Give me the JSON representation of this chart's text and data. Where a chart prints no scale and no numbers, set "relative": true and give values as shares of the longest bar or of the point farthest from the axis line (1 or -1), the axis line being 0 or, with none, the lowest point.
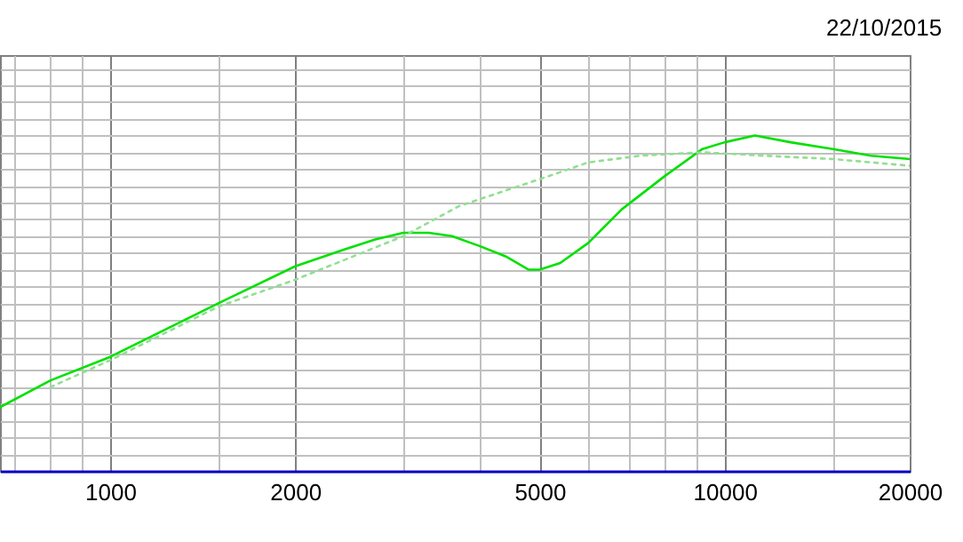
{
  "chart_data": {
    "type": "line",
    "relative": true,
    "log": "x",
    "grid": true,
    "annotations": [
      "22/10/2015"
    ],
    "xlim": [
      662,
      20000
    ],
    "xticks": [
      {
        "value": 700,
        "label": null
      },
      {
        "value": 800,
        "label": null
      },
      {
        "value": 900,
        "label": null
      },
      1000,
      {
        "value": 1500,
        "label": null
      },
      2000,
      {
        "value": 3000,
        "label": null
      },
      {
        "value": 4000,
        "label": null
      },
      5000,
      {
        "value": 6000,
        "label": null
      },
      {
        "value": 7000,
        "label": null
      },
      {
        "value": 8000,
        "label": null
      },
      {
        "value": 9000,
        "label": null
      },
      10000,
      {
        "value": 15000,
        "label": null
      },
      20000
    ],
    "series": [
      {
        "color": "#00e000",
        "line_style": "solid",
        "x": [
          662,
          800,
          1000,
          1500,
          2000,
          2400,
          2700,
          3000,
          3300,
          3600,
          4000,
          4400,
          4800,
          5000,
          5400,
          6000,
          6800,
          8000,
          9200,
          10000,
          11200,
          12800,
          15000,
          17300,
          20000
        ],
        "values": [
          0.19,
          0.27,
          0.34,
          0.5,
          0.61,
          0.66,
          0.69,
          0.71,
          0.71,
          0.7,
          0.67,
          0.64,
          0.6,
          0.6,
          0.62,
          0.68,
          0.78,
          0.88,
          0.96,
          0.98,
          1,
          0.98,
          0.96,
          0.94,
          0.93
        ]
      },
      {
        "color": "#90e090",
        "line_style": "dotted",
        "x": [
          800,
          1000,
          1500,
          2000,
          3000,
          3700,
          5000,
          6000,
          7300,
          9200,
          11600,
          15000,
          20000
        ],
        "values": [
          0.25,
          0.33,
          0.49,
          0.57,
          0.7,
          0.79,
          0.87,
          0.92,
          0.94,
          0.95,
          0.94,
          0.93,
          0.91
        ]
      }
    ]
  }
}
